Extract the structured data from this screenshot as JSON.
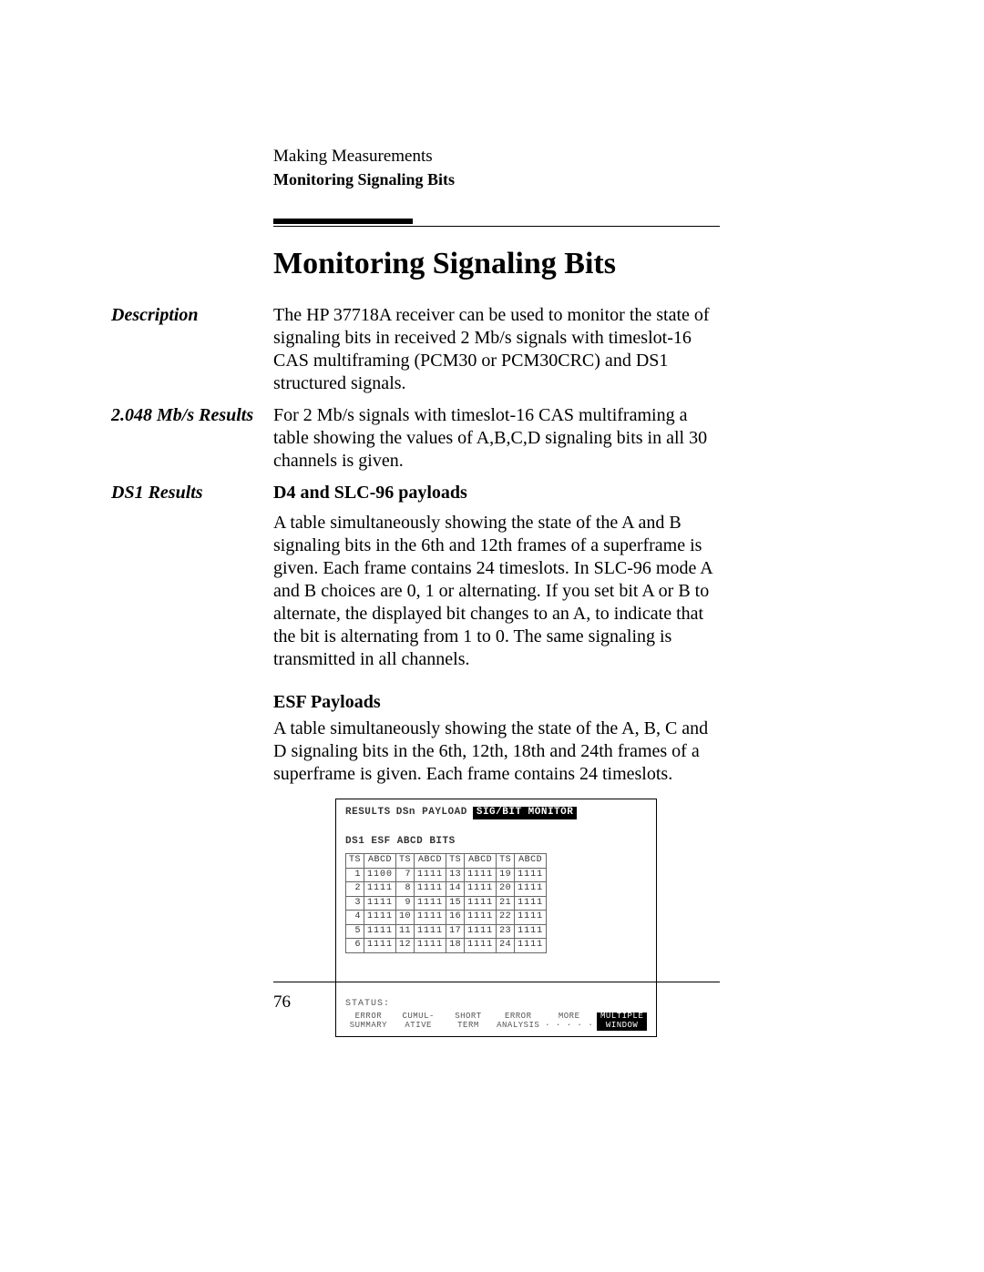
{
  "header": {
    "chapter": "Making Measurements",
    "section": "Monitoring Signaling Bits"
  },
  "title": "Monitoring Signaling Bits",
  "sections": {
    "description": {
      "label": "Description",
      "text": "The HP 37718A receiver can be used to monitor the state of signaling bits in received 2 Mb/s signals with timeslot-16 CAS multiframing (PCM30 or PCM30CRC) and DS1 structured signals."
    },
    "rate": {
      "label": "2.048 Mb/s Results",
      "text": "For 2 Mb/s signals with timeslot-16 CAS multiframing a table showing the values of A,B,C,D signaling bits in all 30 channels is given."
    },
    "ds1": {
      "label": "DS1 Results",
      "sub1_head": "D4 and SLC-96 payloads",
      "sub1_text": "A table simultaneously showing the state of the A and B signaling bits in the 6th and 12th frames of a superframe is given. Each frame contains 24 timeslots. In SLC-96 mode A and B choices are 0, 1 or alternating. If you set bit A or B to alternate, the displayed bit changes to an A, to indicate that the bit is alternating from 1 to 0. The same signaling is transmitted in all channels.",
      "sub2_head": "ESF Payloads",
      "sub2_text": "A table simultaneously showing the state of the A, B, C and D signaling bits in the 6th, 12th, 18th and 24th frames of a superframe is given. Each frame contains 24 timeslots."
    }
  },
  "instrument": {
    "topline_left": "RESULTS",
    "topline_mid": "DSn PAYLOAD",
    "topline_rev": "SIG/BIT MONITOR",
    "subline": "DS1 ESF ABCD BITS",
    "col_ts": "TS",
    "col_abcd": "ABCD",
    "groups": [
      {
        "ts": [
          "1",
          "2",
          "3",
          "4",
          "5",
          "6"
        ],
        "abcd": [
          "1100",
          "1111",
          "1111",
          "1111",
          "1111",
          "1111"
        ]
      },
      {
        "ts": [
          "7",
          "8",
          "9",
          "10",
          "11",
          "12"
        ],
        "abcd": [
          "1111",
          "1111",
          "1111",
          "1111",
          "1111",
          "1111"
        ]
      },
      {
        "ts": [
          "13",
          "14",
          "15",
          "16",
          "17",
          "18"
        ],
        "abcd": [
          "1111",
          "1111",
          "1111",
          "1111",
          "1111",
          "1111"
        ]
      },
      {
        "ts": [
          "19",
          "20",
          "21",
          "22",
          "23",
          "24"
        ],
        "abcd": [
          "1111",
          "1111",
          "1111",
          "1111",
          "1111",
          "1111"
        ]
      }
    ],
    "status_label": "STATUS:",
    "softkeys": [
      {
        "text": "ERROR\nSUMMARY",
        "rev": false
      },
      {
        "text": "CUMUL-\nATIVE",
        "rev": false
      },
      {
        "text": "SHORT\nTERM",
        "rev": false
      },
      {
        "text": "ERROR\nANALYSIS",
        "rev": false
      },
      {
        "text": "MORE\n· · · · ·",
        "rev": false
      },
      {
        "text": "MULTIPLE\nWINDOW",
        "rev": true
      }
    ]
  },
  "page_number": "76"
}
